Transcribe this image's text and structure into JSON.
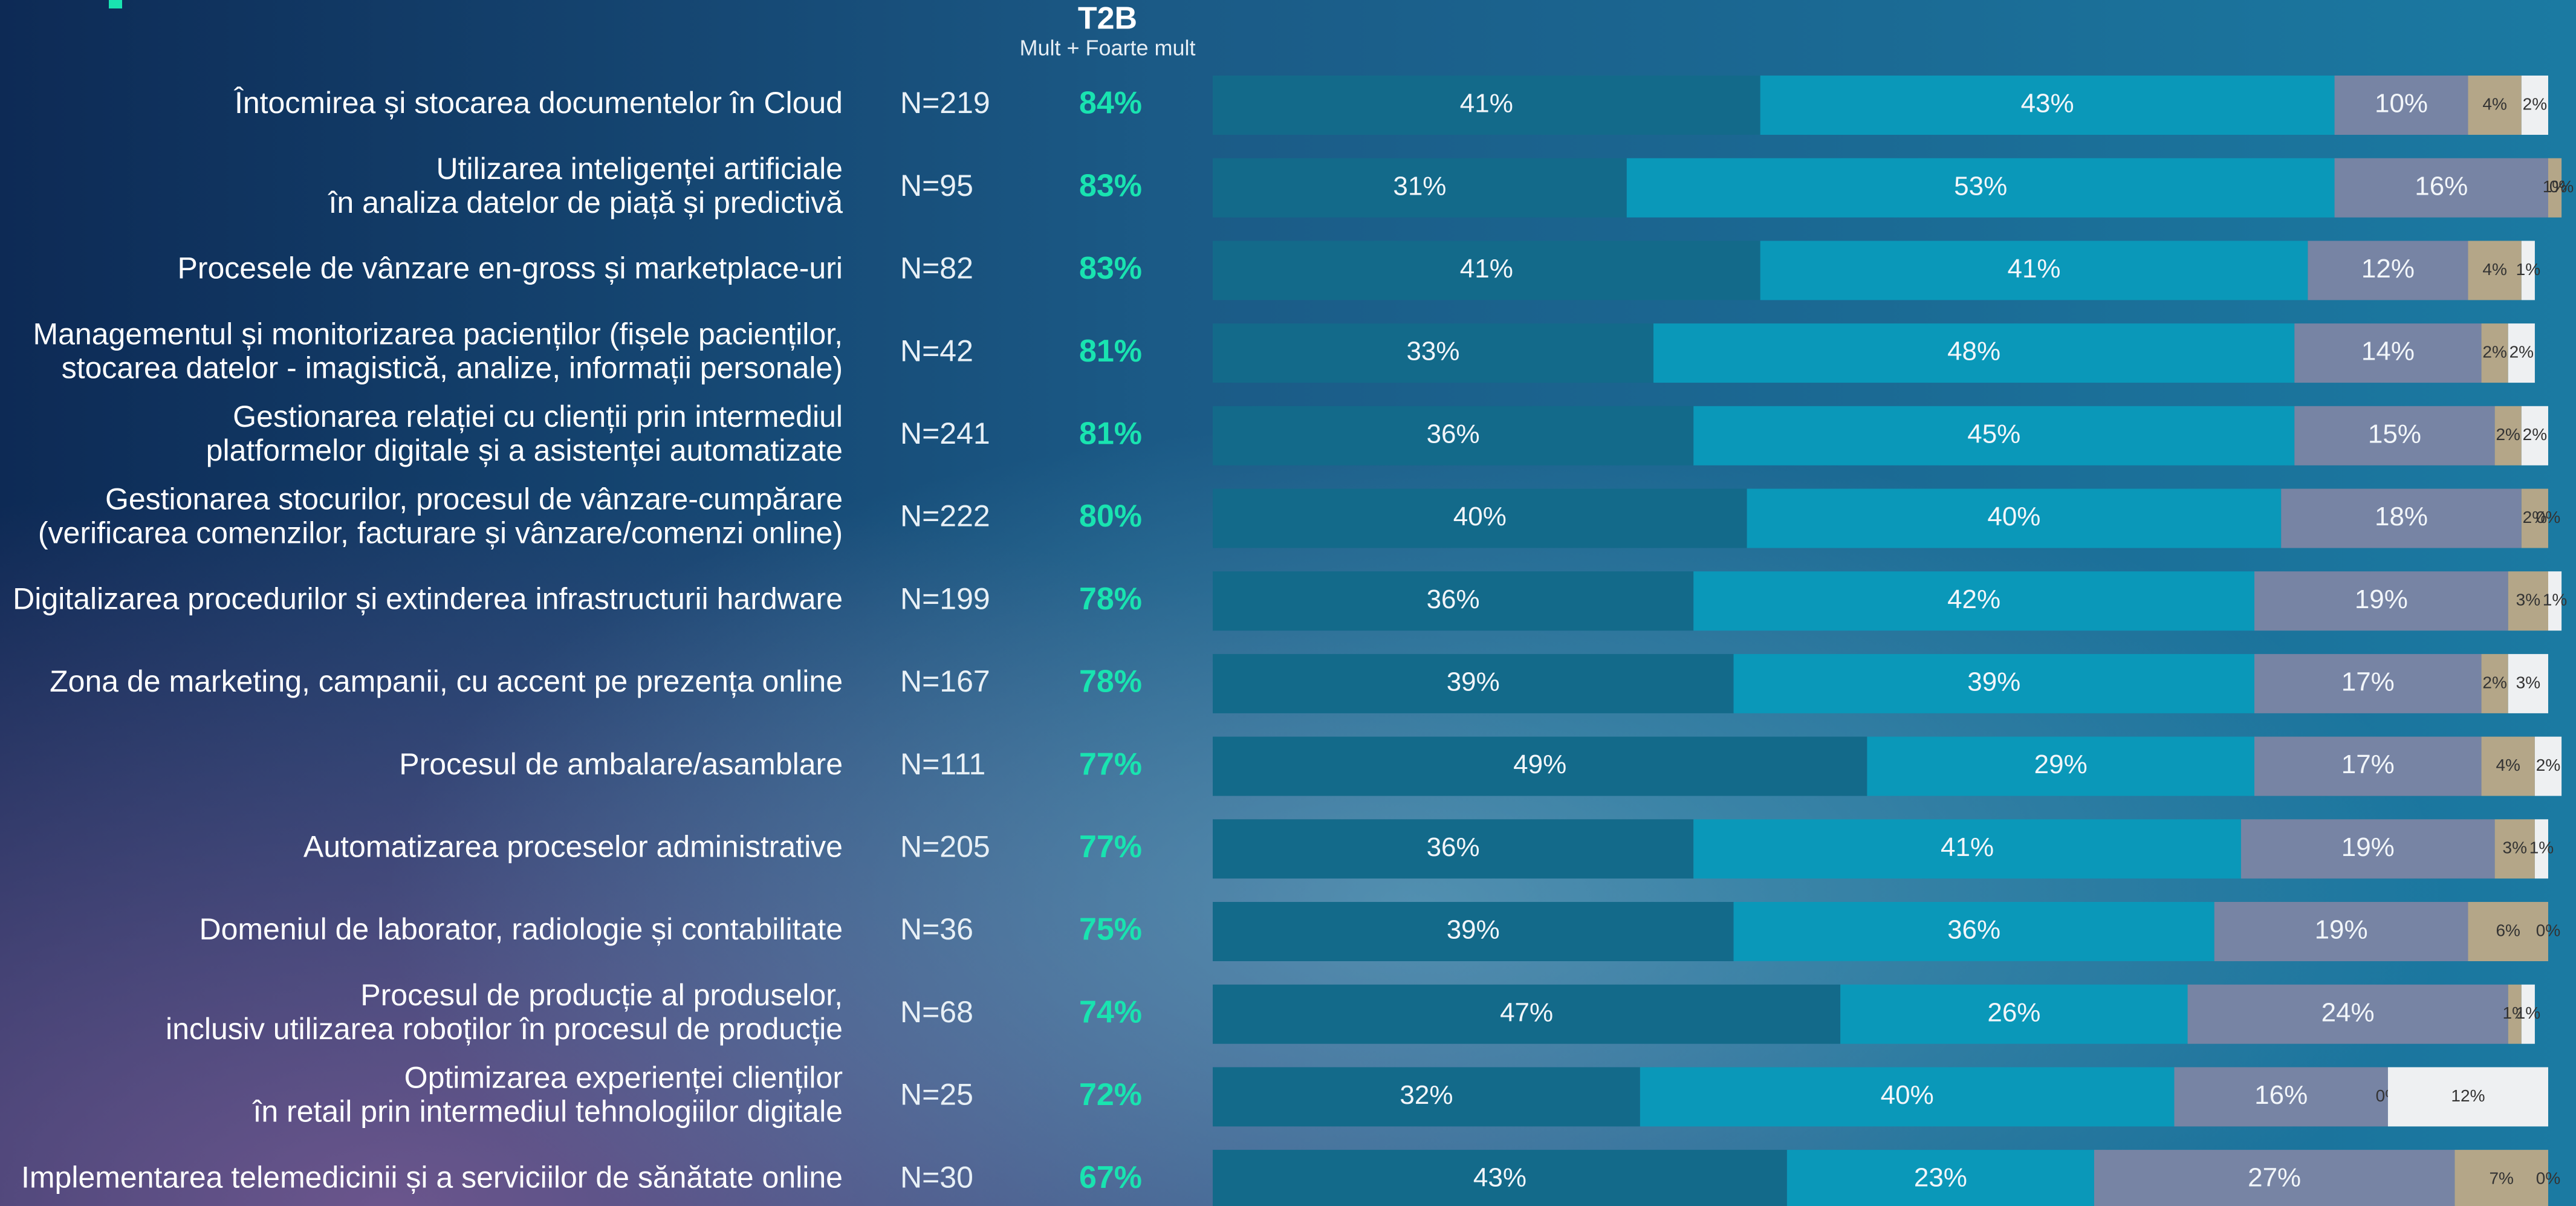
{
  "chart_data": {
    "type": "stacked-bar",
    "header": {
      "title": "T2B",
      "subtitle": "Mult + Foarte mult"
    },
    "categories": [
      [
        "Întocmirea și stocarea documentelor în Cloud"
      ],
      [
        "Utilizarea inteligenței artificiale",
        "în analiza datelor de piață și predictivă"
      ],
      [
        "Procesele de vânzare en-gross și marketplace-uri"
      ],
      [
        "Managementul și monitorizarea pacienților (fișele pacienților,",
        "stocarea datelor - imagistică, analize, informații personale)"
      ],
      [
        "Gestionarea relației cu clienții prin intermediul",
        "platformelor digitale și a asistenței automatizate"
      ],
      [
        "Gestionarea stocurilor, procesul de vânzare-cumpărare",
        "(verificarea comenzilor, facturare și vânzare/comenzi online)"
      ],
      [
        "Digitalizarea procedurilor și extinderea infrastructurii hardware"
      ],
      [
        "Zona de marketing, campanii, cu accent pe prezența online"
      ],
      [
        "Procesul de ambalare/asamblare"
      ],
      [
        "Automatizarea proceselor administrative"
      ],
      [
        "Domeniul de laborator, radiologie și contabilitate"
      ],
      [
        "Procesul de producție al produselor,",
        "inclusiv utilizarea roboților în procesul de producție"
      ],
      [
        "Optimizarea experienței clienților",
        "în retail prin intermediul tehnologiilor digitale"
      ],
      [
        "Implementarea telemedicinii și a serviciilor de sănătate online"
      ]
    ],
    "sample_sizes": [
      "N=219",
      "N=95",
      "N=82",
      "N=42",
      "N=241",
      "N=222",
      "N=199",
      "N=167",
      "N=111",
      "N=205",
      "N=36",
      "N=68",
      "N=25",
      "N=30"
    ],
    "t2b": {
      "values": [
        84,
        83,
        83,
        81,
        81,
        80,
        78,
        78,
        77,
        77,
        75,
        74,
        72,
        67
      ],
      "value_labels": [
        "84%",
        "83%",
        "83%",
        "81%",
        "81%",
        "80%",
        "78%",
        "78%",
        "77%",
        "77%",
        "75%",
        "74%",
        "72%",
        "67%"
      ]
    },
    "xlim": [
      0,
      100
    ],
    "series": [
      {
        "color": "#136a8a",
        "values": [
          41,
          31,
          41,
          33,
          36,
          40,
          36,
          39,
          49,
          36,
          39,
          47,
          32,
          43
        ],
        "value_labels": [
          "41%",
          "31%",
          "41%",
          "33%",
          "36%",
          "40%",
          "36%",
          "39%",
          "49%",
          "36%",
          "39%",
          "47%",
          "32%",
          "43%"
        ]
      },
      {
        "color": "#0a98b9",
        "values": [
          43,
          53,
          41,
          48,
          45,
          40,
          42,
          39,
          29,
          41,
          36,
          26,
          40,
          23
        ],
        "value_labels": [
          "43%",
          "53%",
          "41%",
          "48%",
          "45%",
          "40%",
          "42%",
          "39%",
          "29%",
          "41%",
          "36%",
          "26%",
          "40%",
          "23%"
        ]
      },
      {
        "color": "#7784a4",
        "values": [
          10,
          16,
          12,
          14,
          15,
          18,
          19,
          17,
          17,
          19,
          19,
          24,
          16,
          27
        ],
        "value_labels": [
          "10%",
          "16%",
          "12%",
          "14%",
          "15%",
          "18%",
          "19%",
          "17%",
          "17%",
          "19%",
          "19%",
          "24%",
          "16%",
          "27%"
        ]
      },
      {
        "color": "#b4a688",
        "values": [
          4,
          1,
          4,
          2,
          2,
          2,
          3,
          2,
          4,
          3,
          6,
          1,
          0,
          7
        ],
        "value_labels": [
          "4%",
          "1%",
          "4%",
          "2%",
          "2%",
          "2%",
          "3%",
          "2%",
          "4%",
          "3%",
          "6%",
          "1%",
          "0%",
          "7%"
        ]
      },
      {
        "color": "#eef0f2",
        "values": [
          2,
          0,
          1,
          2,
          2,
          0,
          1,
          3,
          2,
          1,
          0,
          1,
          12,
          0
        ],
        "value_labels": [
          "2%",
          "0%",
          "1%",
          "2%",
          "2%",
          "0%",
          "1%",
          "3%",
          "2%",
          "1%",
          "0%",
          "1%",
          "12%",
          "0%"
        ]
      }
    ]
  }
}
